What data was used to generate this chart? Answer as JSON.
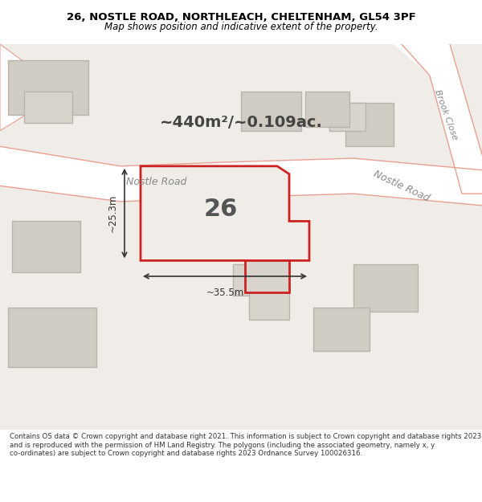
{
  "title_line1": "26, NOSTLE ROAD, NORTHLEACH, CHELTENHAM, GL54 3PF",
  "title_line2": "Map shows position and indicative extent of the property.",
  "area_text": "~440m²/~0.109ac.",
  "number_label": "26",
  "dim_width": "~35.5m",
  "dim_height": "~25.3m",
  "road_label1": "Nostle Road",
  "road_label2": "Nostle Road",
  "road_label3": "Brook Close",
  "footer_text": "Contains OS data © Crown copyright and database right 2021. This information is subject to Crown copyright and database rights 2023 and is reproduced with the permission of HM Land Registry. The polygons (including the associated geometry, namely x, y co-ordinates) are subject to Crown copyright and database rights 2023 Ordnance Survey 100026316.",
  "bg_color": "#f0ede8",
  "map_bg": "#f0ede8",
  "building_fill": "#d8d4cc",
  "building_edge": "#c8c4bc",
  "road_color": "#ffffff",
  "road_stripe": "#e8a090",
  "plot_fill": "#f0ede8",
  "plot_edge": "#cc2222",
  "plot_edge_width": 2.0,
  "dim_color": "#333333",
  "text_color": "#333333",
  "footer_color": "#333333"
}
